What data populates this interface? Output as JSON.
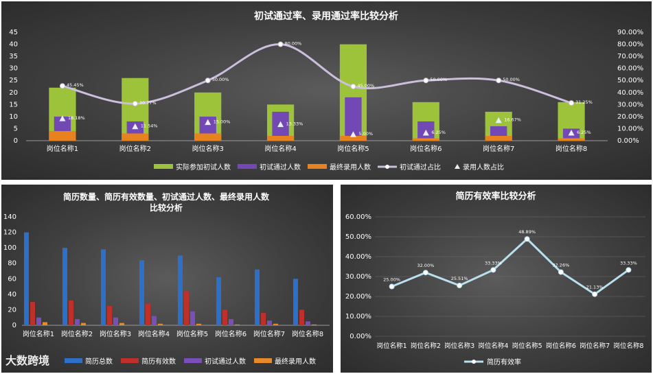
{
  "colors": {
    "green": "#9dc33a",
    "purple": "#7248b4",
    "orange": "#e8821e",
    "lavender": "#ccbedd",
    "triangle": "#e8f0f8",
    "blue": "#2e6fc8",
    "red": "#c0302a",
    "violet": "#7a4fb8",
    "orange2": "#e88a28",
    "cyan": "#b8e0ee",
    "grid": "#6a6a6a"
  },
  "watermark": "大数跨境",
  "chart_data": [
    {
      "type": "bar",
      "title": "初试通过率、录用通过率比较分析",
      "categories": [
        "岗位名称1",
        "岗位名称2",
        "岗位名称3",
        "岗位名称4",
        "岗位名称5",
        "岗位名称6",
        "岗位名称7",
        "岗位名称8"
      ],
      "ylim": [
        0,
        45
      ],
      "yticks": [
        "0",
        "5",
        "10",
        "15",
        "20",
        "25",
        "30",
        "35",
        "40",
        "45"
      ],
      "y2lim": [
        0,
        90
      ],
      "y2ticks": [
        "0.00%",
        "10.00%",
        "20.00%",
        "30.00%",
        "40.00%",
        "50.00%",
        "60.00%",
        "70.00%",
        "80.00%",
        "90.00%"
      ],
      "series": [
        {
          "name": "实际参加初试人数",
          "kind": "bar",
          "values": [
            22,
            26,
            20,
            15,
            40,
            16,
            12,
            16
          ]
        },
        {
          "name": "初试通过人数",
          "kind": "bar",
          "values": [
            10,
            8,
            10,
            12,
            18,
            8,
            6,
            5
          ]
        },
        {
          "name": "最终录用人数",
          "kind": "bar",
          "values": [
            4,
            3,
            3,
            2,
            2,
            1,
            2,
            1
          ]
        },
        {
          "name": "初试通过占比",
          "kind": "line",
          "axis": "right",
          "values": [
            45.45,
            30.77,
            50.0,
            80.0,
            45.0,
            50.0,
            50.0,
            31.25
          ],
          "labels": [
            "45.45%",
            "30.77%",
            "50.00%",
            "80.00%",
            "45.00%",
            "50.00%",
            "50.00%",
            "31.25%"
          ]
        },
        {
          "name": "录用人数占比",
          "kind": "marker",
          "axis": "right",
          "values": [
            18.18,
            11.54,
            15.0,
            13.33,
            5.0,
            6.25,
            16.67,
            6.25
          ],
          "labels": [
            "18.18%",
            "11.54%",
            "15.00%",
            "13.33%",
            "5.00%",
            "6.25%",
            "16.67%",
            "6.25%"
          ]
        }
      ],
      "legend": "bottom"
    },
    {
      "type": "bar",
      "title": "简历数量、简历有效数量、初试通过人数、最终录用人数比较分析",
      "title_lines": [
        "简历数量、简历有效数量、初试通过人数、最终录用人数",
        "比较分析"
      ],
      "categories": [
        "岗位名称1",
        "岗位名称2",
        "岗位名称3",
        "岗位名称4",
        "岗位名称5",
        "岗位名称6",
        "岗位名称7",
        "岗位名称8"
      ],
      "ylim": [
        0,
        140
      ],
      "yticks": [
        "0",
        "20",
        "40",
        "60",
        "80",
        "100",
        "120",
        "140"
      ],
      "series": [
        {
          "name": "简历总数",
          "values": [
            120,
            100,
            98,
            84,
            90,
            62,
            72,
            60
          ]
        },
        {
          "name": "简历有效数",
          "values": [
            30,
            32,
            25,
            28,
            44,
            20,
            16,
            20
          ]
        },
        {
          "name": "初试通过人数",
          "values": [
            10,
            8,
            10,
            12,
            18,
            8,
            6,
            5
          ]
        },
        {
          "name": "最终录用人数",
          "values": [
            4,
            3,
            3,
            2,
            2,
            1,
            2,
            1
          ]
        }
      ],
      "legend": "bottom"
    },
    {
      "type": "line",
      "title": "简历有效率比较分析",
      "categories": [
        "岗位名称1",
        "岗位名称2",
        "岗位名称3",
        "岗位名称4",
        "岗位名称5",
        "岗位名称6",
        "岗位名称7",
        "岗位名称8"
      ],
      "ylim": [
        0,
        60
      ],
      "yticks": [
        "0.00%",
        "10.00%",
        "20.00%",
        "30.00%",
        "40.00%",
        "50.00%",
        "60.00%"
      ],
      "series": [
        {
          "name": "简历有效率",
          "values": [
            25.0,
            32.0,
            25.51,
            33.33,
            48.89,
            32.26,
            21.13,
            33.33
          ],
          "labels": [
            "25.00%",
            "32.00%",
            "25.51%",
            "33.33%",
            "48.89%",
            "32.26%",
            "21.13%",
            "33.33%"
          ]
        }
      ],
      "legend": "bottom"
    }
  ]
}
